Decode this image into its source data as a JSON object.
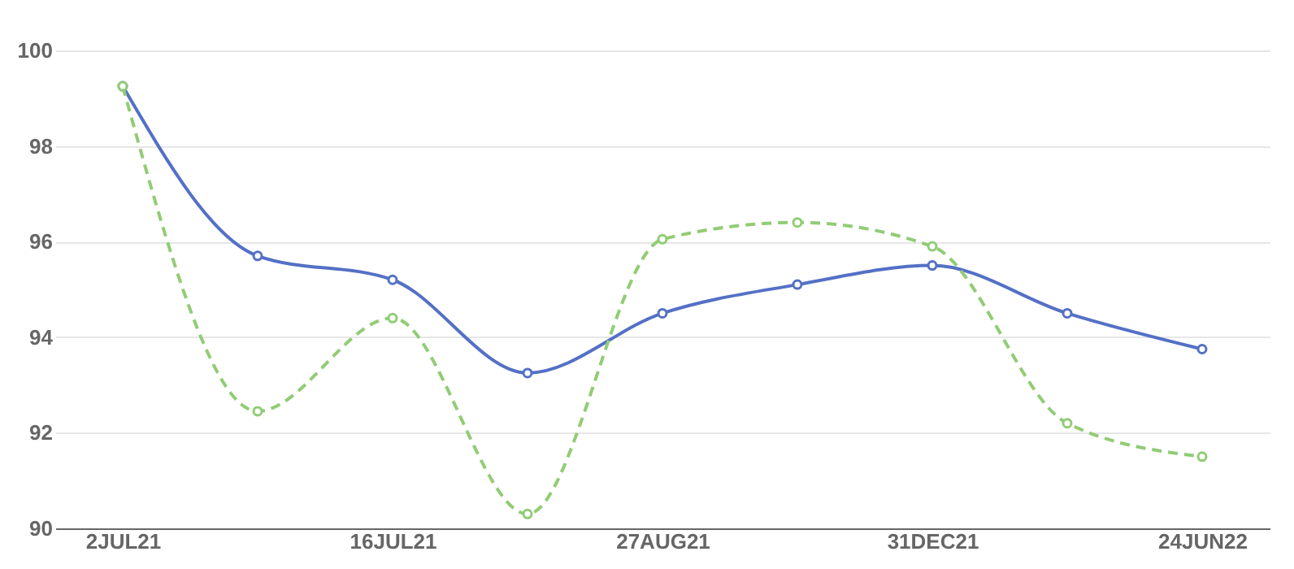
{
  "chart_data": {
    "type": "line",
    "categories": [
      "2JUL21",
      null,
      "16JUL21",
      null,
      "27AUG21",
      null,
      "31DEC21",
      null,
      "24JUN22"
    ],
    "series": [
      {
        "color": "#5470c6",
        "line_style": "solid",
        "values": [
          99.25,
          95.7,
          95.2,
          93.25,
          94.5,
          95.1,
          95.5,
          94.5,
          93.75
        ]
      },
      {
        "color": "#91cc75",
        "line_style": "dashed",
        "values": [
          99.25,
          92.45,
          94.4,
          90.3,
          96.05,
          96.4,
          95.9,
          92.2,
          91.5
        ]
      }
    ],
    "ylim": [
      90,
      100
    ],
    "yticks": [
      90,
      92,
      94,
      96,
      98,
      100
    ],
    "grid": "y",
    "marker": "circle"
  }
}
